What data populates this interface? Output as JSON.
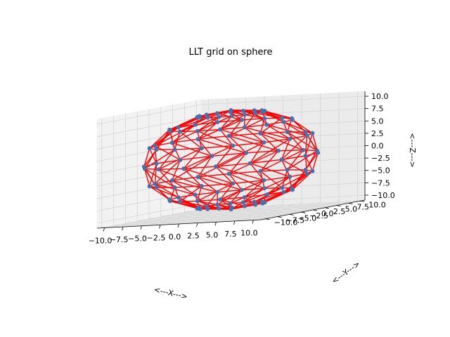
{
  "chart_data": {
    "type": "scatter3d",
    "title": "LLT grid on sphere",
    "xlabel": "<---X--->",
    "ylabel": "<---Y--->",
    "zlabel": "<---Z--->",
    "xlim": [
      -11,
      11
    ],
    "ylim": [
      -11,
      11
    ],
    "zlim": [
      -11,
      11
    ],
    "xticks": [
      -10.0,
      -7.5,
      -5.0,
      -2.5,
      0.0,
      2.5,
      5.0,
      7.5,
      10.0
    ],
    "yticks": [
      -10.0,
      -7.5,
      -5.0,
      -2.5,
      0.0,
      2.5,
      5.0,
      7.5,
      10.0
    ],
    "zticks": [
      -10.0,
      -7.5,
      -5.0,
      -2.5,
      0.0,
      2.5,
      5.0,
      7.5,
      10.0
    ],
    "xtick_labels": [
      "−10.0",
      "−7.5",
      "−5.0",
      "−2.5",
      "0.0",
      "2.5",
      "5.0",
      "7.5",
      "10.0"
    ],
    "ytick_labels": [
      "−10.0",
      "−7.5",
      "−5.0",
      "−2.5",
      "0.0",
      "2.5",
      "5.0",
      "7.5",
      "10.0"
    ],
    "ztick_labels": [
      "−10.0",
      "−7.5",
      "−5.0",
      "−2.5",
      "0.0",
      "2.5",
      "5.0",
      "7.5",
      "10.0"
    ],
    "grid": true,
    "sphere": {
      "radius": 10,
      "latitude_rings": 7,
      "points_per_ring": 16
    },
    "point_color": "#4472b0",
    "edge_color": "#ff0000"
  }
}
